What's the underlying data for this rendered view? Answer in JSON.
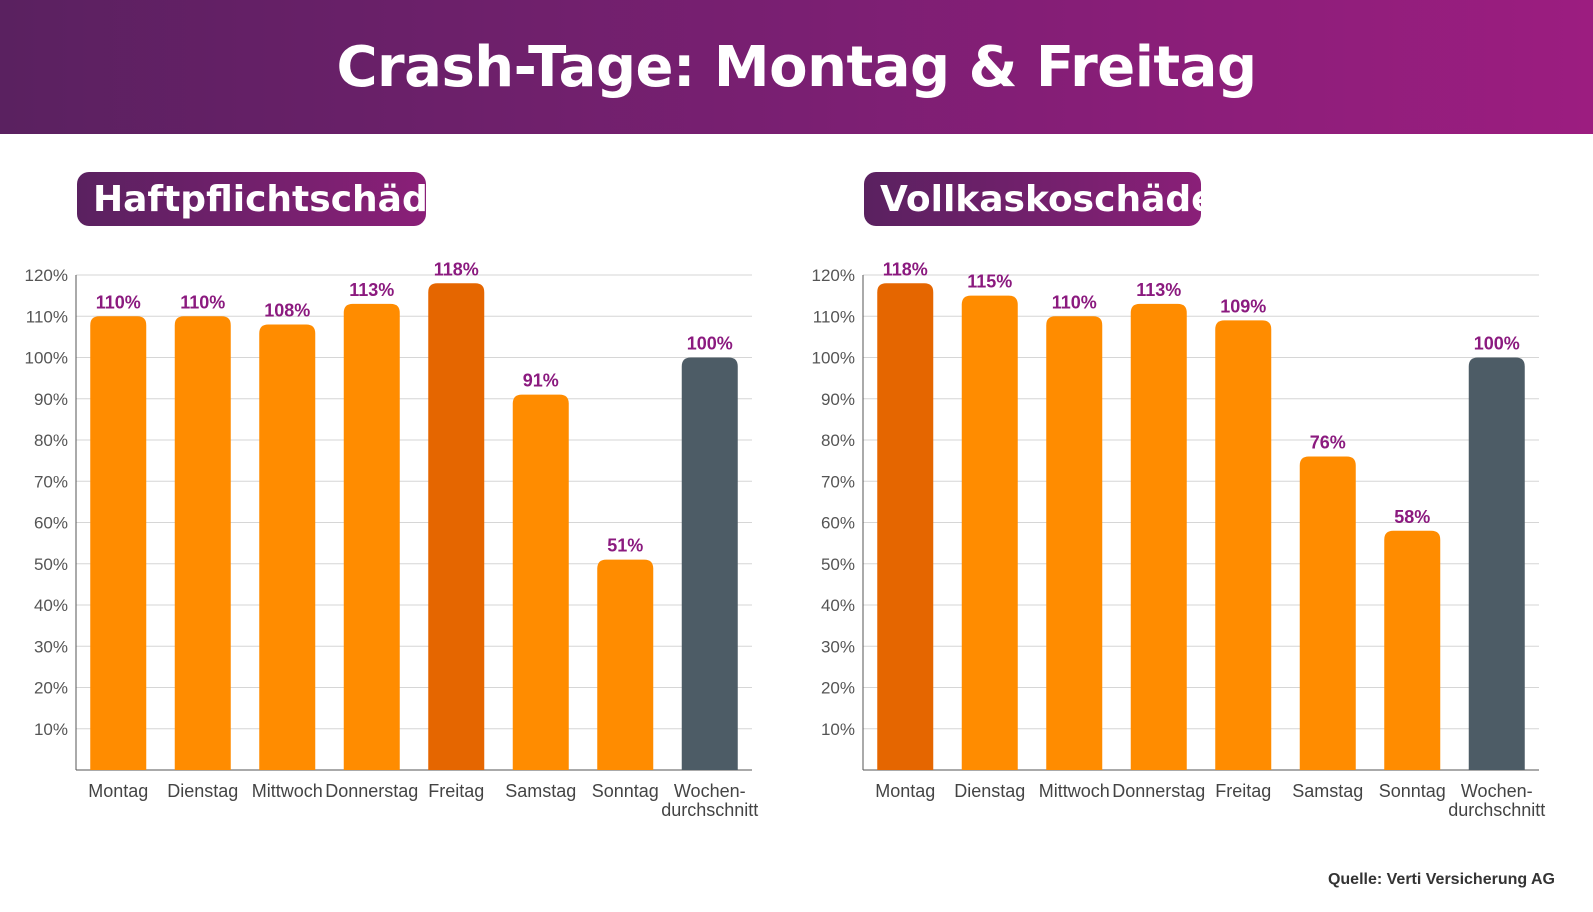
{
  "header": {
    "title": "Crash-Tage: Montag & Freitag"
  },
  "source": "Quelle: Verti Versicherung AG",
  "colors": {
    "bar": "#ff8c00",
    "highlight": "#e56600",
    "average": "#4d5c66",
    "label": "#8b1a7f",
    "grid": "#d6d6d6"
  },
  "chart_data": [
    {
      "type": "bar",
      "title": "Haftpflichtschäden",
      "categories": [
        "Montag",
        "Dienstag",
        "Mittwoch",
        "Donnerstag",
        "Freitag",
        "Samstag",
        "Sonntag",
        "Wochen-\ndurchschnitt"
      ],
      "values": [
        110,
        110,
        108,
        113,
        118,
        91,
        51,
        100
      ],
      "value_labels": [
        "110%",
        "110%",
        "108%",
        "113%",
        "118%",
        "91%",
        "51%",
        "100%"
      ],
      "highlight_index": 4,
      "average_index": 7,
      "yticks": [
        "10%",
        "20%",
        "30%",
        "40%",
        "50%",
        "60%",
        "70%",
        "80%",
        "90%",
        "100%",
        "110%",
        "120%"
      ],
      "ylim": [
        0,
        120
      ],
      "grid": true
    },
    {
      "type": "bar",
      "title": "Vollkaskoschäden",
      "categories": [
        "Montag",
        "Dienstag",
        "Mittwoch",
        "Donnerstag",
        "Freitag",
        "Samstag",
        "Sonntag",
        "Wochen-\ndurchschnitt"
      ],
      "values": [
        118,
        115,
        110,
        113,
        109,
        76,
        58,
        100
      ],
      "value_labels": [
        "118%",
        "115%",
        "110%",
        "113%",
        "109%",
        "76%",
        "58%",
        "100%"
      ],
      "highlight_index": 0,
      "average_index": 7,
      "yticks": [
        "10%",
        "20%",
        "30%",
        "40%",
        "50%",
        "60%",
        "70%",
        "80%",
        "90%",
        "100%",
        "110%",
        "120%"
      ],
      "ylim": [
        0,
        120
      ],
      "grid": true
    }
  ]
}
